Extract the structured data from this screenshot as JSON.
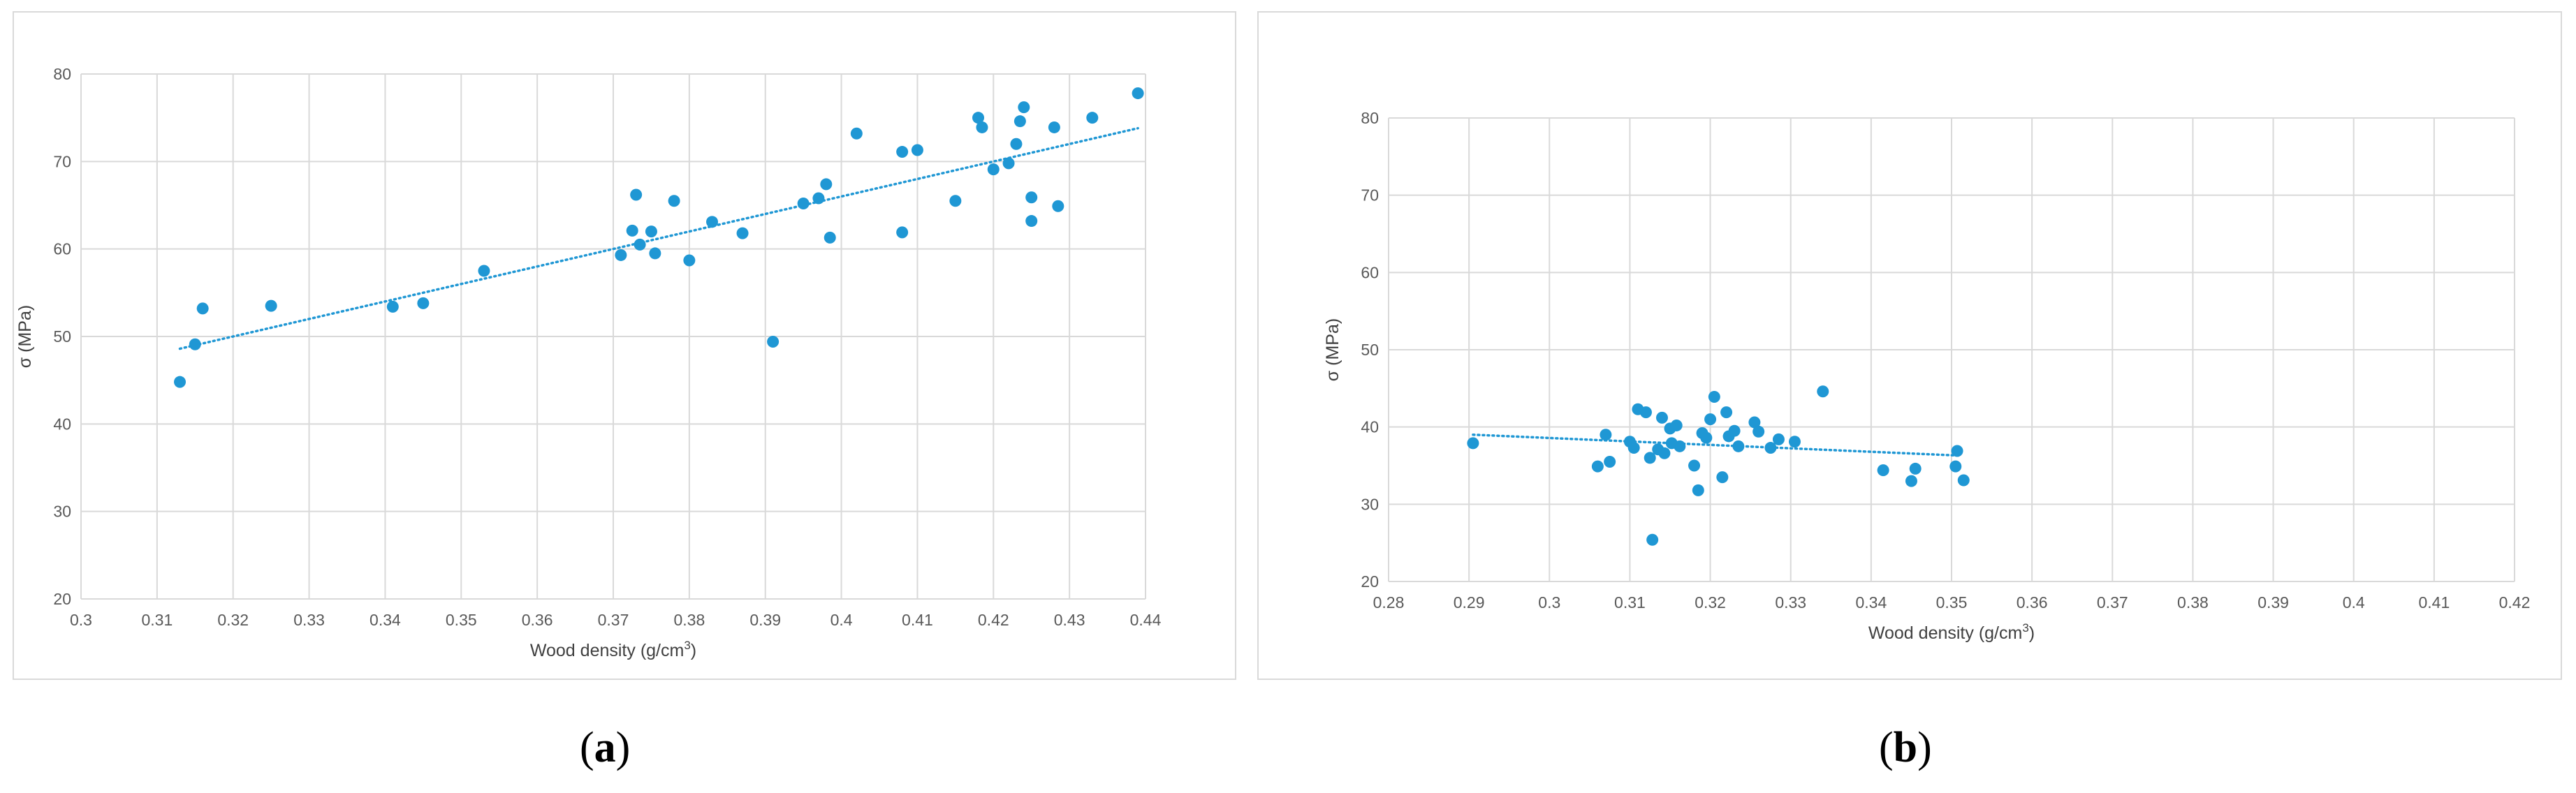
{
  "captions": [
    {
      "open": "(",
      "letter": "a",
      "close": ")"
    },
    {
      "open": "(",
      "letter": "b",
      "close": ")"
    }
  ],
  "chart_data": [
    {
      "type": "scatter",
      "title": "",
      "xlabel": "Wood density (g/cm",
      "xlabel_sup": "3",
      "xlabel_close": ")",
      "ylabel": "σ (MPa)",
      "xlim": [
        0.3,
        0.44
      ],
      "ylim": [
        20,
        80
      ],
      "xticks": [
        0.3,
        0.31,
        0.32,
        0.33,
        0.34,
        0.35,
        0.36,
        0.37,
        0.38,
        0.39,
        0.4,
        0.41,
        0.42,
        0.43,
        0.44
      ],
      "yticks": [
        20,
        30,
        40,
        50,
        60,
        70,
        80
      ],
      "grid": true,
      "marker_color": "#1f97d4",
      "trendline": {
        "type": "linear",
        "style": "dotted",
        "x": [
          0.313,
          0.439
        ],
        "y": [
          48.6,
          73.8
        ]
      },
      "points": [
        [
          0.313,
          44.8
        ],
        [
          0.315,
          49.1
        ],
        [
          0.316,
          53.2
        ],
        [
          0.325,
          53.5
        ],
        [
          0.341,
          53.4
        ],
        [
          0.345,
          53.8
        ],
        [
          0.353,
          57.5
        ],
        [
          0.371,
          59.3
        ],
        [
          0.3725,
          62.1
        ],
        [
          0.373,
          66.2
        ],
        [
          0.3735,
          60.5
        ],
        [
          0.375,
          62.0
        ],
        [
          0.3755,
          59.5
        ],
        [
          0.378,
          65.5
        ],
        [
          0.38,
          58.7
        ],
        [
          0.383,
          63.1
        ],
        [
          0.387,
          61.8
        ],
        [
          0.391,
          49.4
        ],
        [
          0.395,
          65.2
        ],
        [
          0.397,
          65.8
        ],
        [
          0.398,
          67.4
        ],
        [
          0.3985,
          61.3
        ],
        [
          0.402,
          73.2
        ],
        [
          0.408,
          61.9
        ],
        [
          0.408,
          71.1
        ],
        [
          0.41,
          71.3
        ],
        [
          0.415,
          65.5
        ],
        [
          0.418,
          75.0
        ],
        [
          0.4185,
          73.9
        ],
        [
          0.42,
          69.1
        ],
        [
          0.422,
          69.8
        ],
        [
          0.423,
          72.0
        ],
        [
          0.4235,
          74.6
        ],
        [
          0.424,
          76.2
        ],
        [
          0.425,
          65.9
        ],
        [
          0.425,
          63.2
        ],
        [
          0.428,
          73.9
        ],
        [
          0.4285,
          64.9
        ],
        [
          0.433,
          75.0
        ],
        [
          0.439,
          77.8
        ]
      ]
    },
    {
      "type": "scatter",
      "title": "",
      "xlabel": "Wood density (g/cm",
      "xlabel_sup": "3",
      "xlabel_close": ")",
      "ylabel": "σ (MPa)",
      "xlim": [
        0.28,
        0.42
      ],
      "ylim": [
        20,
        80
      ],
      "xticks": [
        0.28,
        0.29,
        0.3,
        0.31,
        0.32,
        0.33,
        0.34,
        0.35,
        0.36,
        0.37,
        0.38,
        0.39,
        0.4,
        0.41,
        0.42
      ],
      "yticks": [
        20,
        30,
        40,
        50,
        60,
        70,
        80
      ],
      "grid": true,
      "marker_color": "#1f97d4",
      "trendline": {
        "type": "linear",
        "style": "dotted",
        "x": [
          0.2905,
          0.351
        ],
        "y": [
          39.0,
          36.3
        ]
      },
      "points": [
        [
          0.2905,
          37.9
        ],
        [
          0.306,
          34.9
        ],
        [
          0.307,
          39.0
        ],
        [
          0.3075,
          35.5
        ],
        [
          0.31,
          38.1
        ],
        [
          0.311,
          42.3
        ],
        [
          0.3105,
          37.3
        ],
        [
          0.312,
          41.9
        ],
        [
          0.3125,
          36.0
        ],
        [
          0.3128,
          25.4
        ],
        [
          0.3135,
          37.1
        ],
        [
          0.314,
          41.2
        ],
        [
          0.3143,
          36.6
        ],
        [
          0.315,
          39.8
        ],
        [
          0.3152,
          37.9
        ],
        [
          0.3158,
          40.2
        ],
        [
          0.3162,
          37.5
        ],
        [
          0.318,
          35.0
        ],
        [
          0.3185,
          31.8
        ],
        [
          0.319,
          39.2
        ],
        [
          0.3195,
          38.6
        ],
        [
          0.32,
          41.0
        ],
        [
          0.3205,
          43.9
        ],
        [
          0.3215,
          33.5
        ],
        [
          0.322,
          41.9
        ],
        [
          0.3223,
          38.8
        ],
        [
          0.323,
          39.5
        ],
        [
          0.3235,
          37.5
        ],
        [
          0.3255,
          40.6
        ],
        [
          0.326,
          39.4
        ],
        [
          0.3275,
          37.3
        ],
        [
          0.3285,
          38.4
        ],
        [
          0.3305,
          38.1
        ],
        [
          0.334,
          44.6
        ],
        [
          0.3415,
          34.4
        ],
        [
          0.345,
          33.0
        ],
        [
          0.3455,
          34.6
        ],
        [
          0.3505,
          34.9
        ],
        [
          0.3507,
          36.9
        ],
        [
          0.3515,
          33.1
        ]
      ]
    }
  ]
}
